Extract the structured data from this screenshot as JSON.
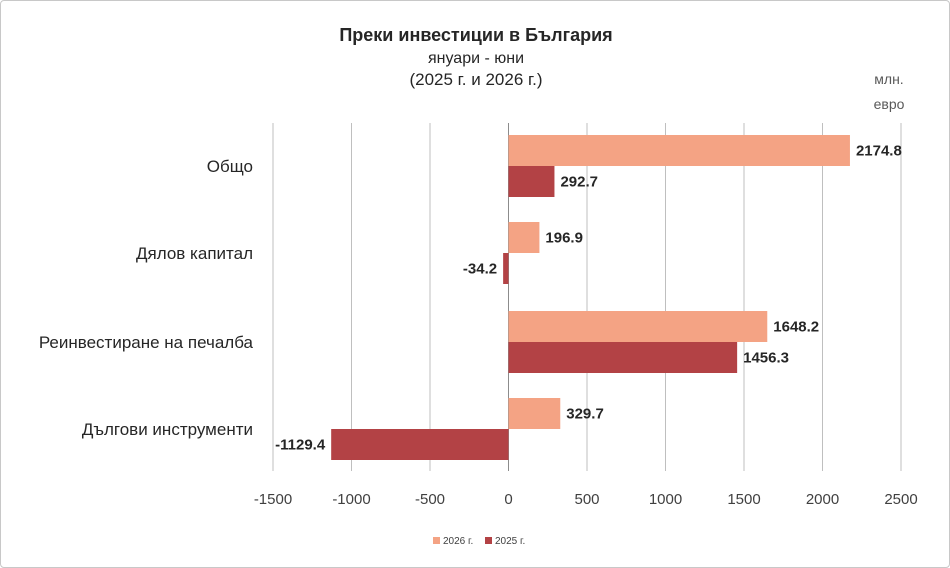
{
  "chart_data": {
    "type": "bar",
    "orientation": "horizontal",
    "title": "Преки инвестиции в България",
    "subtitle": "януари - юни",
    "subtitle2": "(2025 г. и 2026 г.)",
    "unit_line1": "млн.",
    "unit_line2": "евро",
    "categories": [
      "Общо",
      "Дялов капитал",
      "Реинвестиране на печалба",
      "Дългови инструменти"
    ],
    "series": [
      {
        "name": "2026 г.",
        "color": "#F4A384",
        "values": [
          2174.8,
          196.9,
          1648.2,
          329.7
        ]
      },
      {
        "name": "2025 г.",
        "color": "#B34245",
        "values": [
          292.7,
          -34.2,
          1456.3,
          -1129.4
        ]
      }
    ],
    "xlim": [
      -1500,
      2500
    ],
    "xticks": [
      -1500,
      -1000,
      -500,
      0,
      500,
      1000,
      1500,
      2000,
      2500
    ],
    "grid": "vertical",
    "legend": "bottom"
  }
}
